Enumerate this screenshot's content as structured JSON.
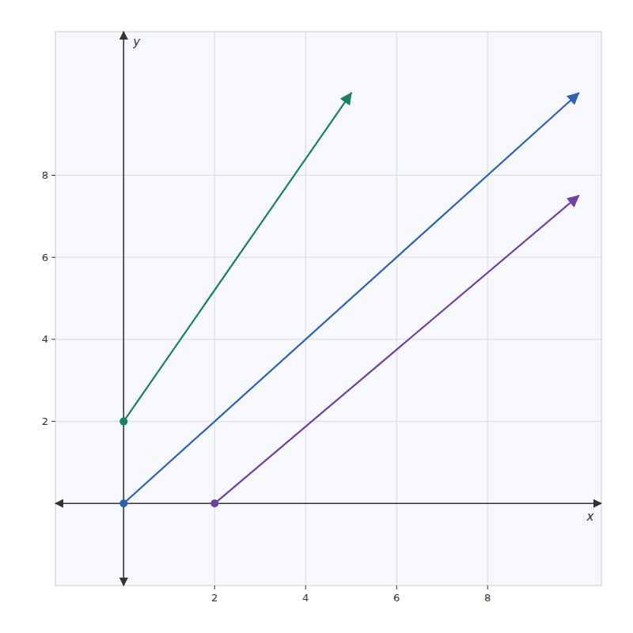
{
  "chart_data": {
    "type": "line",
    "xlabel": "x",
    "ylabel": "y",
    "xlim": [
      -1.5,
      10.5
    ],
    "ylim": [
      -2.0,
      11.5
    ],
    "xticks": [
      2,
      4,
      6,
      8
    ],
    "yticks": [
      2,
      4,
      6,
      8
    ],
    "grid": true,
    "marker": "circle",
    "series": [
      {
        "color": "#3060b0",
        "x": [
          0,
          10
        ],
        "values": [
          0,
          10
        ]
      },
      {
        "color": "#1a8060",
        "x": [
          0,
          5
        ],
        "values": [
          2,
          10
        ]
      },
      {
        "color": "#7040a0",
        "x": [
          2,
          10
        ],
        "values": [
          0,
          7.5
        ]
      }
    ]
  }
}
